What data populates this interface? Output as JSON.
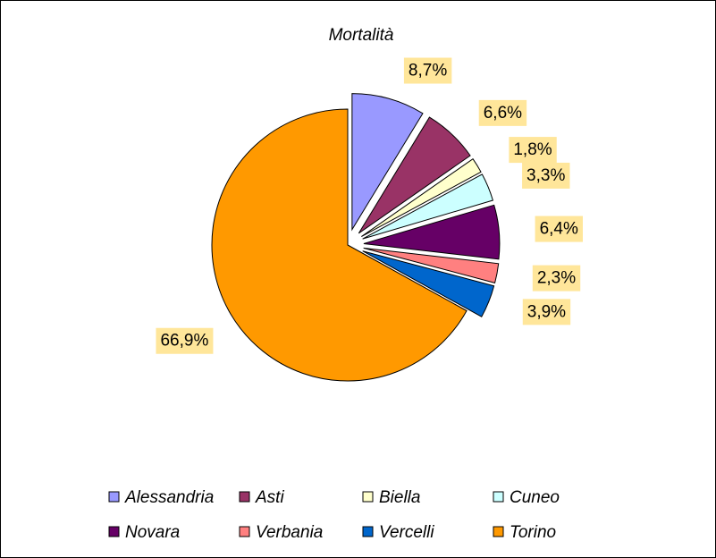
{
  "chart_data": {
    "type": "pie",
    "title": "Mortalità",
    "categories": [
      "Alessandria",
      "Asti",
      "Biella",
      "Cuneo",
      "Novara",
      "Verbania",
      "Vercelli",
      "Torino"
    ],
    "values": [
      8.7,
      6.6,
      1.8,
      3.3,
      6.4,
      2.3,
      3.9,
      66.9
    ],
    "value_labels": [
      "8,7%",
      "6,6%",
      "1,8%",
      "3,3%",
      "6,4%",
      "2,3%",
      "3,9%",
      "66,9%"
    ],
    "colors": [
      "#9999ff",
      "#993366",
      "#ffffcc",
      "#ccffff",
      "#660066",
      "#ff8080",
      "#0066cc",
      "#ff9900"
    ],
    "legend": "bottom"
  }
}
